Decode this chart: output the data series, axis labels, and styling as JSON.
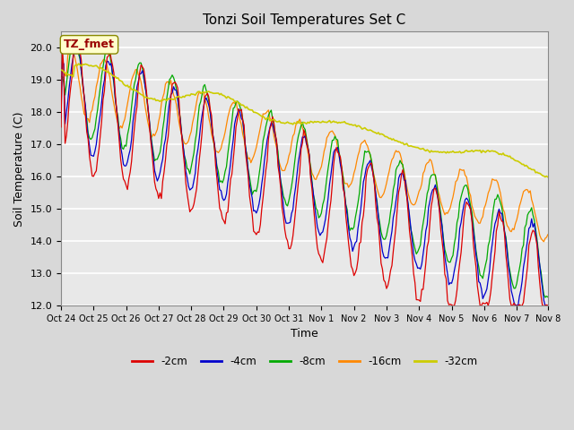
{
  "title": "Tonzi Soil Temperatures Set C",
  "xlabel": "Time",
  "ylabel": "Soil Temperature (C)",
  "ylim": [
    12.0,
    20.5
  ],
  "annotation_text": "TZ_fmet",
  "annotation_box_color": "#FFFFCC",
  "annotation_text_color": "#990000",
  "annotation_edge_color": "#888800",
  "bg_color": "#D8D8D8",
  "plot_bg_color": "#E8E8E8",
  "colors": {
    "-2cm": "#DD0000",
    "-4cm": "#0000CC",
    "-8cm": "#00AA00",
    "-16cm": "#FF8800",
    "-32cm": "#CCCC00"
  },
  "xtick_labels": [
    "Oct 24",
    "Oct 25",
    "Oct 26",
    "Oct 27",
    "Oct 28",
    "Oct 29",
    "Oct 30",
    "Oct 31",
    "Nov 1",
    "Nov 2",
    "Nov 3",
    "Nov 4",
    "Nov 5",
    "Nov 6",
    "Nov 7",
    "Nov 8"
  ],
  "ytick_labels": [
    "12.0",
    "13.0",
    "14.0",
    "15.0",
    "16.0",
    "17.0",
    "18.0",
    "19.0",
    "20.0"
  ],
  "ytick_values": [
    12.0,
    13.0,
    14.0,
    15.0,
    16.0,
    17.0,
    18.0,
    19.0,
    20.0
  ],
  "figsize": [
    6.4,
    4.8
  ],
  "dpi": 100
}
